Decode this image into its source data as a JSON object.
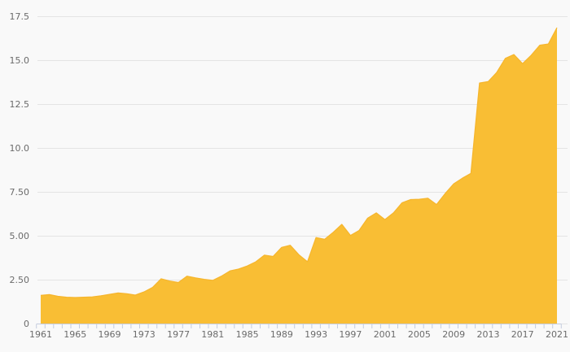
{
  "style": {
    "background": "#f9f9f9",
    "grid_color": "#e4e4e4",
    "axis_tick_color": "#c5cdde",
    "label_color": "#6b6b6b",
    "area_fill": "#f9be34",
    "area_line": "#f6b52c"
  },
  "chart_data": {
    "type": "area",
    "title": "",
    "xlabel": "",
    "ylabel": "",
    "grid": "horizontal",
    "legend": "none",
    "xlim": [
      1961,
      2021
    ],
    "ylim": [
      0,
      17.5
    ],
    "x": [
      1961,
      1962,
      1963,
      1964,
      1965,
      1966,
      1967,
      1968,
      1969,
      1970,
      1971,
      1972,
      1973,
      1974,
      1975,
      1976,
      1977,
      1978,
      1979,
      1980,
      1981,
      1982,
      1983,
      1984,
      1985,
      1986,
      1987,
      1988,
      1989,
      1990,
      1991,
      1992,
      1993,
      1994,
      1995,
      1996,
      1997,
      1998,
      1999,
      2000,
      2001,
      2002,
      2003,
      2004,
      2005,
      2006,
      2007,
      2008,
      2009,
      2010,
      2011,
      2012,
      2013,
      2014,
      2015,
      2016,
      2017,
      2018,
      2019,
      2020,
      2021
    ],
    "values": [
      1.6,
      1.65,
      1.55,
      1.5,
      1.48,
      1.5,
      1.52,
      1.58,
      1.66,
      1.74,
      1.7,
      1.62,
      1.8,
      2.06,
      2.55,
      2.42,
      2.34,
      2.7,
      2.6,
      2.52,
      2.46,
      2.7,
      3.0,
      3.1,
      3.28,
      3.52,
      3.9,
      3.82,
      4.34,
      4.46,
      3.92,
      3.52,
      4.9,
      4.8,
      5.2,
      5.65,
      5.02,
      5.3,
      6.0,
      6.3,
      5.92,
      6.3,
      6.88,
      7.06,
      7.08,
      7.14,
      6.78,
      7.4,
      7.96,
      8.28,
      8.55,
      13.7,
      13.78,
      14.3,
      15.1,
      15.32,
      14.8,
      15.28,
      15.85,
      15.92,
      16.85
    ],
    "y_ticks": {
      "values": [
        0,
        2.5,
        5,
        7.5,
        10,
        12.5,
        15,
        17.5
      ],
      "labels": [
        "0",
        "2.50",
        "5.00",
        "7.50",
        "10.0",
        "12.5",
        "15.0",
        "17.5"
      ]
    },
    "x_ticks": {
      "label_years": [
        1961,
        1965,
        1969,
        1973,
        1977,
        1981,
        1985,
        1989,
        1993,
        1997,
        2001,
        2005,
        2009,
        2013,
        2017,
        2021
      ],
      "minor_tick_every_year": true
    }
  }
}
